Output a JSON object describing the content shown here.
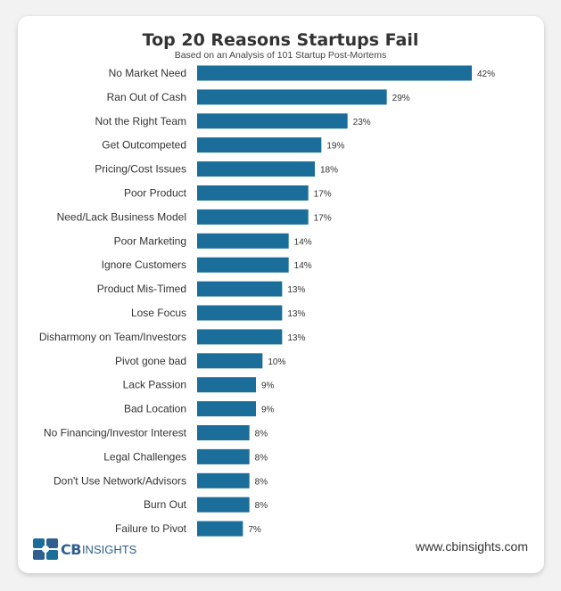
{
  "chart_data": {
    "type": "bar",
    "orientation": "horizontal",
    "title": "Top 20 Reasons Startups Fail",
    "subtitle": "Based on an Analysis of 101 Startup Post-Mortems",
    "categories": [
      "No Market Need",
      "Ran Out of Cash",
      "Not the Right Team",
      "Get Outcompeted",
      "Pricing/Cost Issues",
      "Poor Product",
      "Need/Lack Business Model",
      "Poor Marketing",
      "Ignore Customers",
      "Product Mis-Timed",
      "Lose Focus",
      "Disharmony on Team/Investors",
      "Pivot gone bad",
      "Lack Passion",
      "Bad Location",
      "No Financing/Investor Interest",
      "Legal Challenges",
      "Don't Use Network/Advisors",
      "Burn Out",
      "Failure to Pivot"
    ],
    "values": [
      42,
      29,
      23,
      19,
      18,
      17,
      17,
      14,
      14,
      13,
      13,
      13,
      10,
      9,
      9,
      8,
      8,
      8,
      8,
      7
    ],
    "value_labels": [
      "42%",
      "29%",
      "23%",
      "19%",
      "18%",
      "17%",
      "17%",
      "14%",
      "14%",
      "13%",
      "13%",
      "13%",
      "10%",
      "9%",
      "9%",
      "8%",
      "8%",
      "8%",
      "8%",
      "7%"
    ],
    "xlim": [
      0,
      42
    ],
    "grid": false,
    "bar_color": "#1a6e99"
  },
  "footer": {
    "logo_cb": "CB",
    "logo_insights": "INSIGHTS",
    "website": "www.cbinsights.com"
  }
}
